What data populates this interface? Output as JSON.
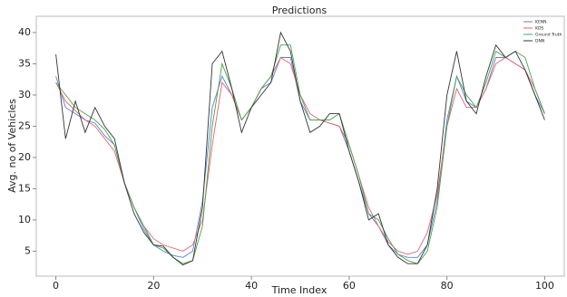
{
  "chart_data": {
    "type": "line",
    "title": "Predictions",
    "xlabel": "Time Index",
    "ylabel": "Avg. no of Vehicles",
    "x": [
      0,
      2,
      4,
      6,
      8,
      10,
      12,
      14,
      16,
      18,
      20,
      22,
      24,
      26,
      28,
      30,
      32,
      34,
      36,
      38,
      40,
      42,
      44,
      46,
      48,
      50,
      52,
      54,
      56,
      58,
      60,
      62,
      64,
      66,
      68,
      70,
      72,
      74,
      76,
      78,
      80,
      82,
      84,
      86,
      88,
      90,
      92,
      94,
      96,
      98,
      100
    ],
    "series": [
      {
        "name": "KENN",
        "color": "#5b7fd6",
        "values": [
          33,
          28,
          27,
          26,
          25.5,
          23.5,
          22,
          16,
          12,
          8.5,
          6,
          5,
          4.3,
          4,
          5,
          13,
          28,
          33,
          30,
          26,
          28,
          31,
          32,
          36,
          36,
          29,
          26,
          26,
          25.5,
          25,
          21,
          16,
          11,
          9,
          6,
          4.5,
          4,
          4,
          6,
          13,
          26,
          33,
          29,
          28,
          31,
          36,
          36,
          35,
          34,
          30,
          27
        ]
      },
      {
        "name": "KDS",
        "color": "#e8606e",
        "values": [
          32,
          29,
          27.5,
          26,
          25,
          23,
          21,
          16,
          12,
          9,
          7,
          6,
          5.5,
          5,
          6,
          10,
          22,
          32,
          30,
          26,
          28,
          31,
          33,
          36,
          35,
          30,
          27,
          26,
          25.5,
          25,
          22,
          17,
          12,
          9,
          6.5,
          5,
          4.5,
          5,
          8,
          14,
          25,
          31,
          28,
          28,
          31,
          35,
          36,
          35,
          34,
          31,
          27
        ]
      },
      {
        "name": "Ground Truth",
        "color": "#4aa44a",
        "values": [
          32,
          30,
          28,
          27,
          26,
          24.5,
          22,
          16,
          12,
          9,
          6,
          5.5,
          4,
          3,
          3.5,
          9,
          25,
          35,
          31,
          26,
          28,
          31,
          33,
          38,
          38,
          30,
          26,
          26,
          26,
          27,
          22,
          17,
          11,
          10,
          7,
          4.5,
          3.5,
          3,
          5,
          12,
          25,
          33,
          30,
          28,
          32,
          37,
          36,
          37,
          36,
          31,
          27
        ]
      },
      {
        "name": "DNN",
        "color": "#333333",
        "values": [
          36.5,
          23,
          29,
          24,
          28,
          25,
          23,
          16,
          11,
          8,
          6,
          5.8,
          4,
          2.8,
          3.5,
          12,
          35,
          37,
          31,
          24,
          28,
          30,
          32,
          40,
          37,
          29,
          24,
          25,
          27,
          27,
          21,
          16,
          10,
          11,
          6,
          4,
          3,
          3,
          6,
          15,
          30,
          37,
          29,
          27,
          33,
          38,
          36,
          37,
          34,
          30,
          26
        ]
      }
    ],
    "xlim": [
      -4,
      104
    ],
    "xticks": [
      0,
      20,
      40,
      60,
      80,
      100
    ],
    "ylim": [
      1,
      42.6
    ],
    "yticks": [
      5,
      10,
      15,
      20,
      25,
      30,
      35,
      40
    ],
    "legend": "upper right"
  }
}
